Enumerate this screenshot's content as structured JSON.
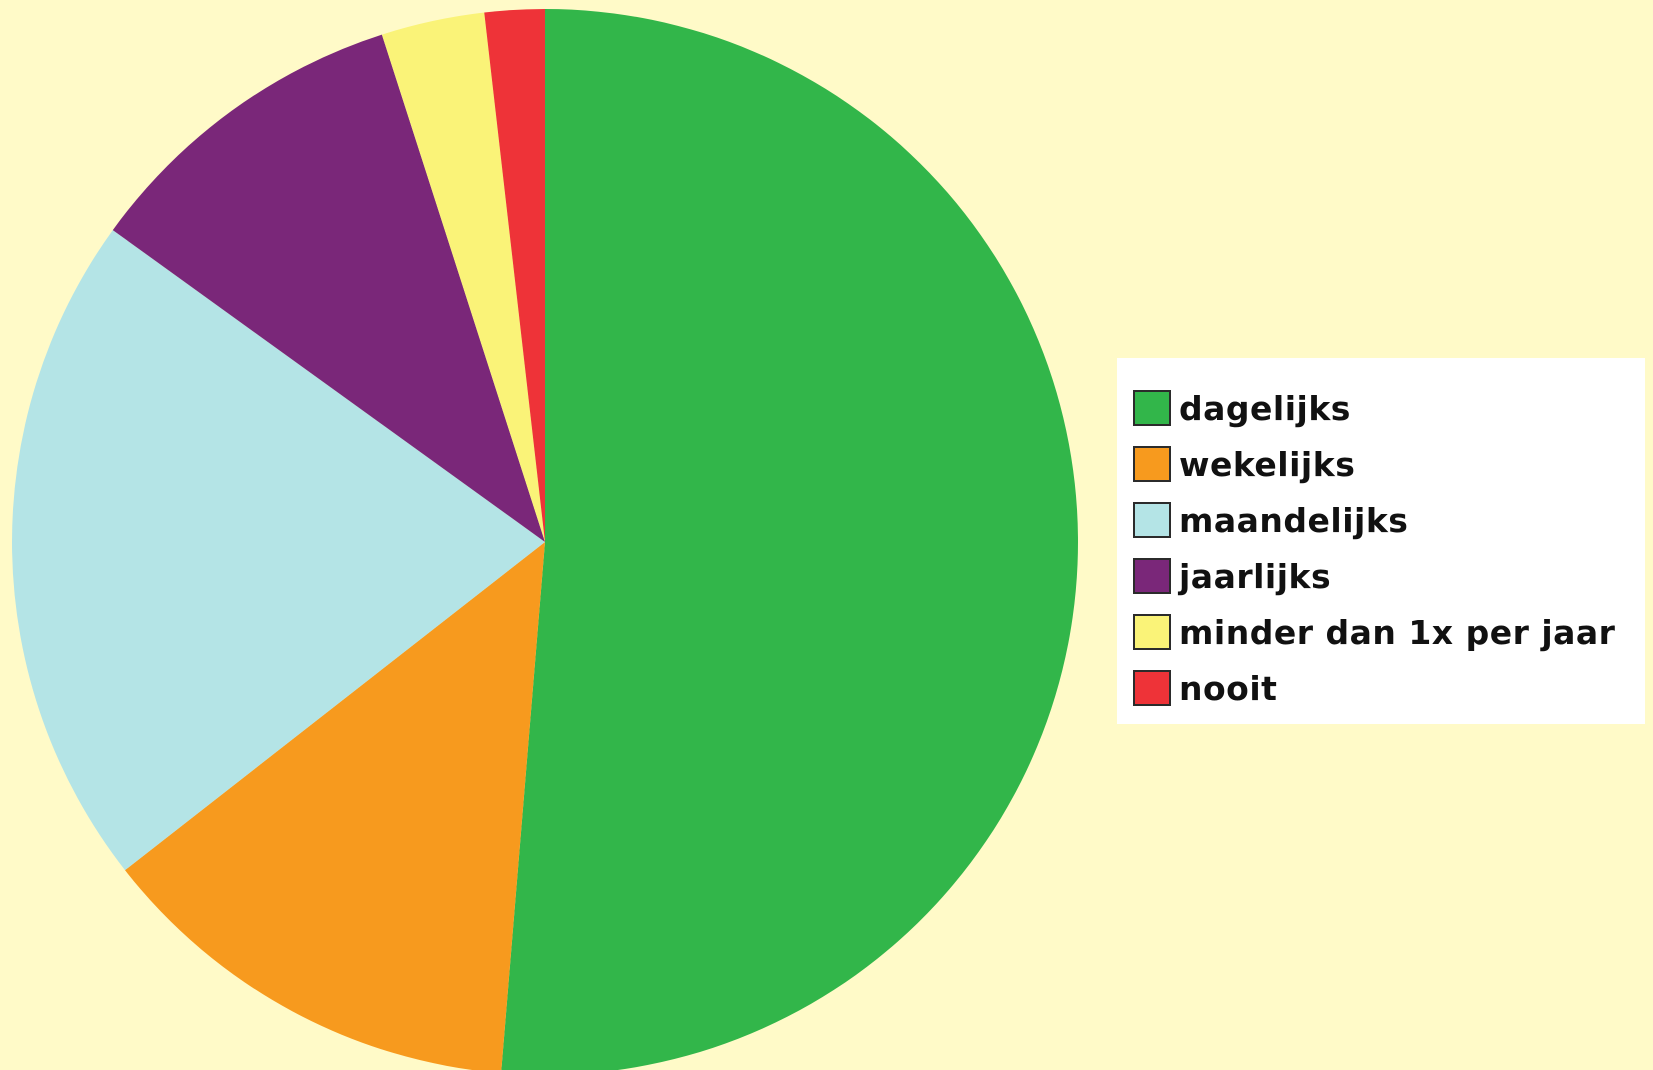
{
  "chart_data": {
    "type": "pie",
    "title": "",
    "start": "top, clockwise",
    "legend_position": "right",
    "slices": [
      {
        "label": "dagelijks",
        "value": 50.8,
        "color": "#32B64A"
      },
      {
        "label": "wekelijks",
        "value": 13.0,
        "color": "#F79A1E"
      },
      {
        "label": "maandelijks",
        "value": 20.3,
        "color": "#B4E4E6"
      },
      {
        "label": "jaarlijks",
        "value": 10.0,
        "color": "#7A2779"
      },
      {
        "label": "minder dan 1x per jaar",
        "value": 3.1,
        "color": "#FAF378"
      },
      {
        "label": "nooit",
        "value": 1.8,
        "color": "#EE3338"
      }
    ]
  }
}
